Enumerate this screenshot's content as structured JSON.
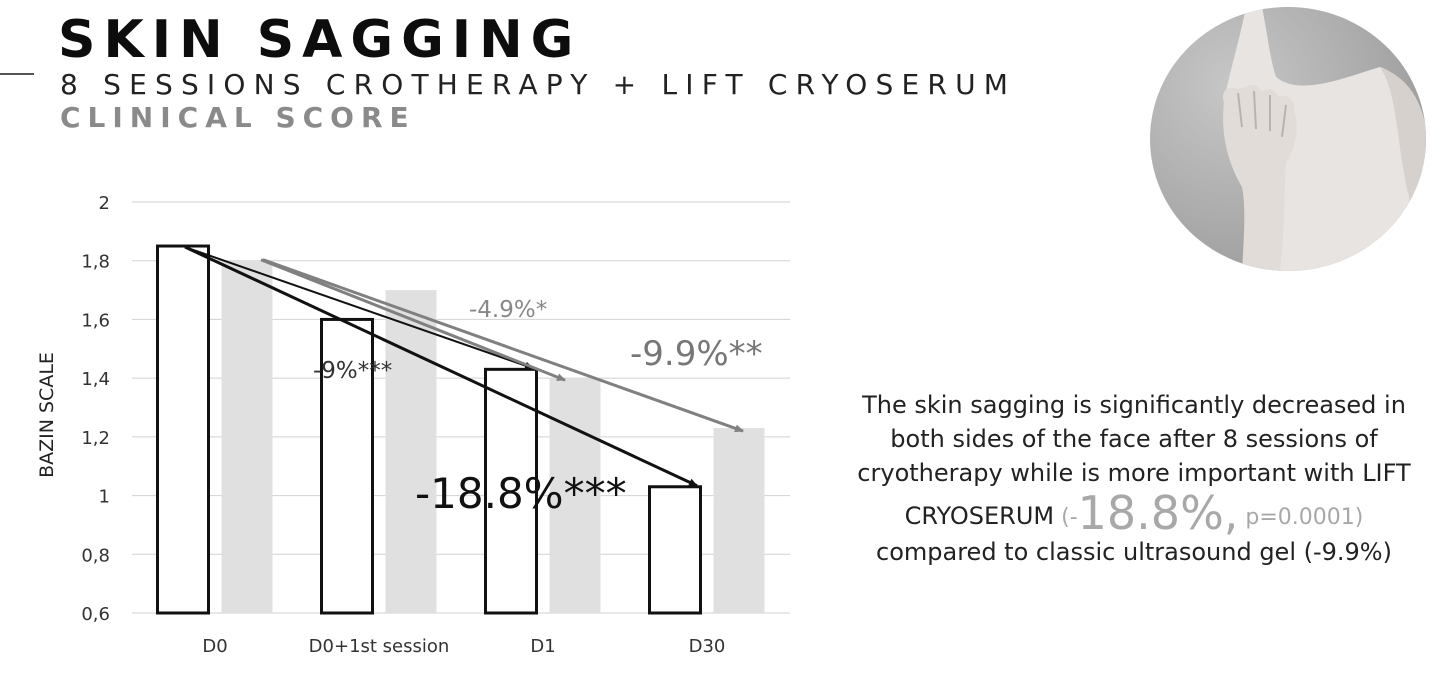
{
  "header": {
    "title": "SKIN SAGGING",
    "subtitle": "8 SESSIONS CROTHERAPY + LIFT CRYOSERUM",
    "subtitle2": "CLINICAL SCORE"
  },
  "chart_data": {
    "type": "bar",
    "title": "",
    "xlabel": "",
    "ylabel": "BAZIN SCALE",
    "ylim": [
      0.6,
      2
    ],
    "yticks": [
      0.6,
      0.8,
      1,
      1.2,
      1.4,
      1.6,
      1.8,
      2
    ],
    "ytick_labels": [
      "0,6",
      "0,8",
      "1",
      "1,2",
      "1,4",
      "1,6",
      "1,8",
      "2"
    ],
    "grid": true,
    "categories": [
      "D0",
      "D0+1st session",
      "D1",
      "D30"
    ],
    "series": [
      {
        "values": [
          1.85,
          1.6,
          1.43,
          1.03
        ],
        "color": "#ffffff",
        "stroke": "#111111"
      },
      {
        "values": [
          1.8,
          1.7,
          1.4,
          1.23
        ],
        "color": "#e0e0e0"
      }
    ],
    "annotations": [
      {
        "text": "-9%***",
        "color": "#333333"
      },
      {
        "text": "-4.9%*",
        "color": "#888888"
      },
      {
        "text": "-9.9%**",
        "color": "#777777"
      },
      {
        "text": "-18.8%***",
        "color": "#111111"
      }
    ]
  },
  "summary": {
    "line1": "The skin sagging is significantly decreased in",
    "line2": "both sides of the face after 8 sessions of",
    "line3": "cryotherapy while is more important with LIFT",
    "line4_prefix": "CRYOSERUM",
    "line4_open": " (-",
    "line4_big": "18.8%,",
    "line4_p": " p=0.0001)",
    "line5": "compared to classic ultrasound gel (-9.9%)"
  },
  "colors": {
    "bar_gray": "#e0e0e0",
    "title_gray": "#8a8a8a",
    "accent_gray": "#a8a8a8"
  },
  "photo": {
    "icon": "face-hand-photo"
  }
}
